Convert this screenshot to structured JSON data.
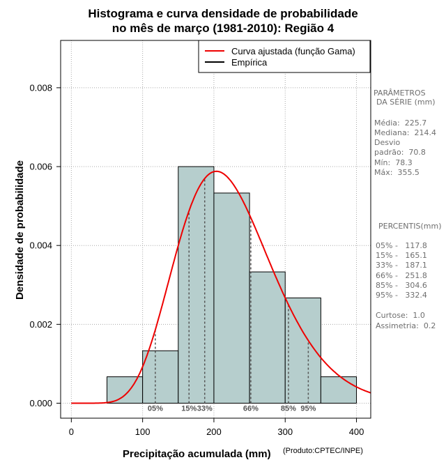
{
  "chart_data": {
    "type": "bar",
    "title_line1": "Histograma e curva densidade de probabilidade",
    "title_line2": "no mês de março (1981-2010): Região 4",
    "xlabel": "Precipitação acumulada (mm)",
    "ylabel": "Densidade de probabilidade",
    "credit": "(Produto:CPTEC/INPE)",
    "xlim": [
      -15,
      420
    ],
    "ylim": [
      -0.00038,
      0.0092
    ],
    "x_ticks": [
      0,
      100,
      200,
      300,
      400
    ],
    "x_tick_labels": [
      "0",
      "100",
      "200",
      "300",
      "400"
    ],
    "y_ticks": [
      0,
      0.002,
      0.004,
      0.006,
      0.008
    ],
    "y_tick_labels": [
      "0.000",
      "0.002",
      "0.004",
      "0.006",
      "0.008"
    ],
    "grid": true,
    "bins": [
      {
        "from": 50,
        "to": 100,
        "density": 0.00067
      },
      {
        "from": 100,
        "to": 150,
        "density": 0.00133
      },
      {
        "from": 150,
        "to": 200,
        "density": 0.006
      },
      {
        "from": 200,
        "to": 250,
        "density": 0.00533
      },
      {
        "from": 250,
        "to": 300,
        "density": 0.00333
      },
      {
        "from": 300,
        "to": 350,
        "density": 0.00267
      },
      {
        "from": 350,
        "to": 400,
        "density": 0.00067
      }
    ],
    "gamma_fit": {
      "mean": 225.7,
      "sd": 70.8
    },
    "percentiles": [
      {
        "label": "05%",
        "value": 117.8
      },
      {
        "label": "15%",
        "value": 165.1
      },
      {
        "label": "33%",
        "value": 187.1
      },
      {
        "label": "66%",
        "value": 251.8
      },
      {
        "label": "85%",
        "value": 304.6
      },
      {
        "label": "95%",
        "value": 332.4
      }
    ],
    "legend": [
      {
        "label": "Curva ajustada (função Gama)",
        "color": "#ee0000"
      },
      {
        "label": "Empírica",
        "color": "#000000"
      }
    ],
    "legend_position": "top-right"
  },
  "colors": {
    "bar_fill": "#b6cecd",
    "curve": "#ee0000",
    "grid": "#a8a8a8",
    "percentile": "#555555"
  },
  "side_panel": {
    "params_header_1": "PARÂMETROS",
    "params_header_2": "DA SÉRIE (mm)",
    "media": "Média:  225.7",
    "mediana": "Mediana:  214.4",
    "desvio": "Desvio",
    "padrao": "padrão:  70.8",
    "min": "Mín:  78.3",
    "max": "Máx:  355.5",
    "percentis_header": "PERCENTIS(mm)",
    "p05": "05% -   117.8",
    "p15": "15% -   165.1",
    "p33": "33% -   187.1",
    "p66": "66% -   251.8",
    "p85": "85% -   304.6",
    "p95": "95% -   332.4",
    "curtose": "Curtose:  1.0",
    "assimetria": "Assimetria:  0.2"
  }
}
